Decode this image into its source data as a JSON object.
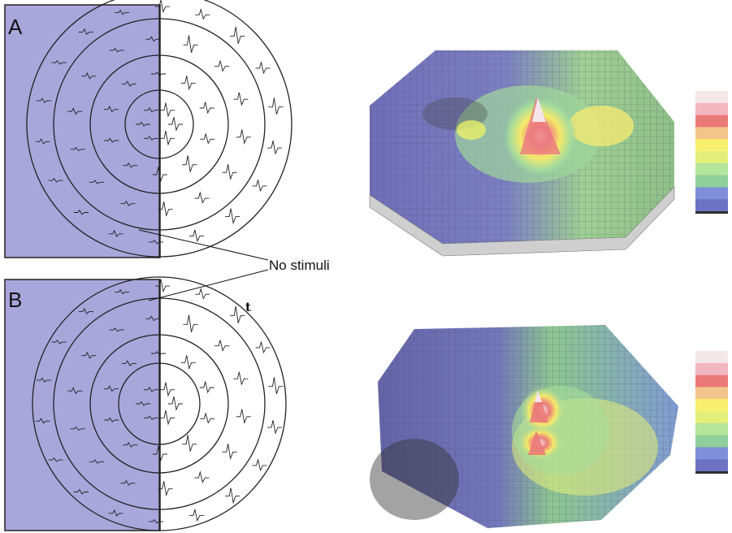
{
  "panels": [
    {
      "label": "A"
    },
    {
      "label": "B"
    }
  ],
  "annotation": "No stimuli",
  "panel_b_mark": "t",
  "colors": {
    "shade": "#a9a6dc",
    "ring": "#222222",
    "color_scale": [
      "#f4e7ea",
      "#f2b7c0",
      "#ea7a78",
      "#f4c58a",
      "#f8f06e",
      "#e3ef7a",
      "#b4e59b",
      "#8fcf9b",
      "#7f8fd8",
      "#6d72c4"
    ]
  }
}
